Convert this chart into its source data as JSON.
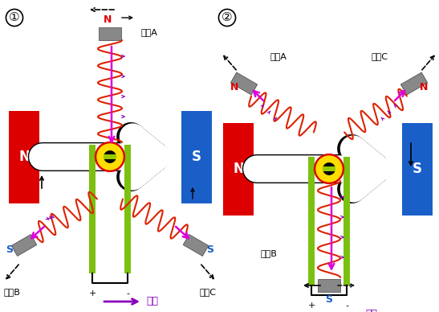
{
  "bg_color": "#ffffff",
  "fig_w": 5.47,
  "fig_h": 3.88,
  "red_color": "#dd0000",
  "blue_color": "#1a5fc8",
  "green_color": "#7cc010",
  "gray_color": "#888888",
  "yellow_color": "#ffdd00",
  "black_color": "#000000",
  "magenta": "#dd00dd",
  "purple": "#8800bb",
  "coil_red": "#dd2200",
  "label1": "①",
  "label2": "②",
  "coilA": "线圈A",
  "coilB": "线圈B",
  "coilC": "线圈C",
  "current": "电流",
  "N_label": "N",
  "S_label": "S"
}
